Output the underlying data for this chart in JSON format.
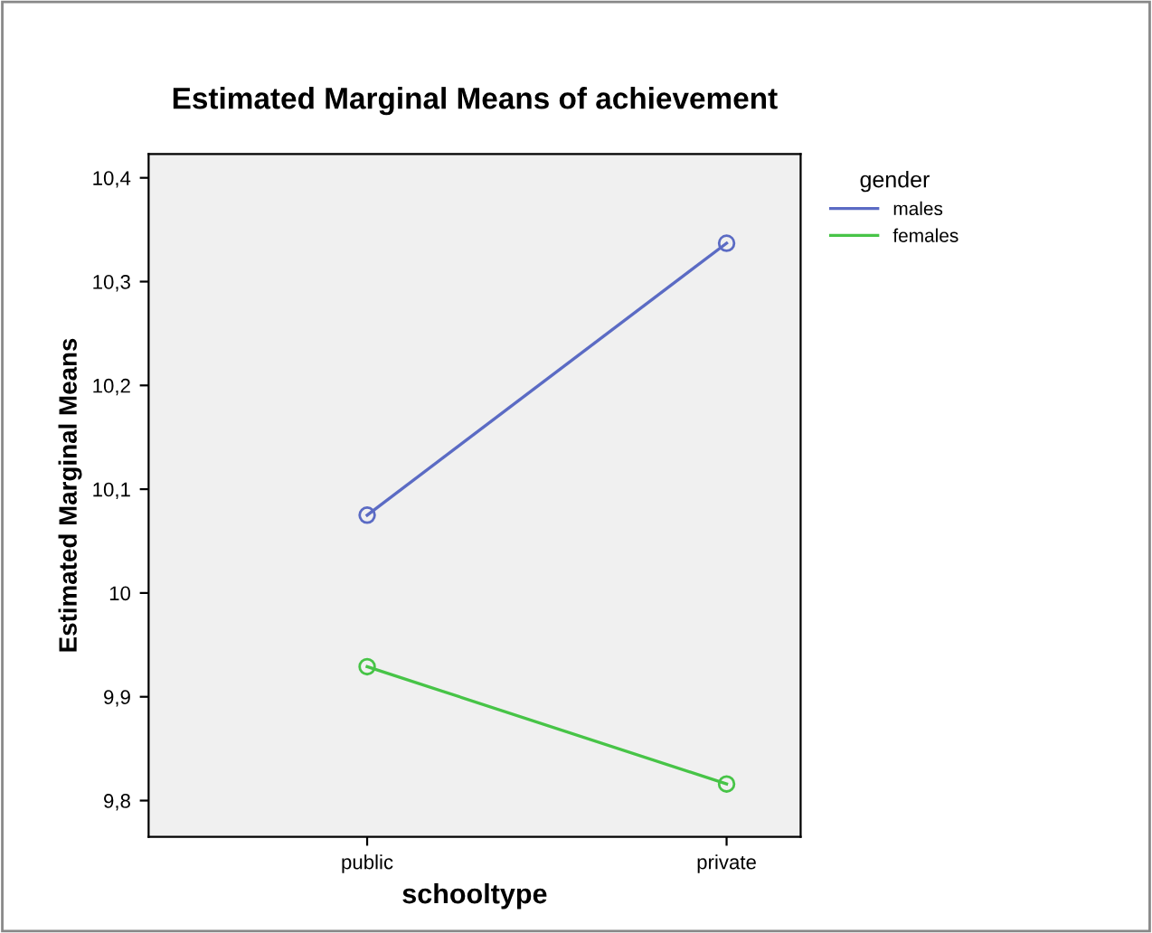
{
  "chart_data": {
    "type": "line",
    "title": "Estimated Marginal Means of achievement",
    "xlabel": "schooltype",
    "ylabel": "Estimated Marginal Means",
    "legend_title": "gender",
    "categories": [
      "public",
      "private"
    ],
    "series": [
      {
        "name": "males",
        "color": "#5b6bc4",
        "values": [
          10.075,
          10.337
        ]
      },
      {
        "name": "females",
        "color": "#47c447",
        "values": [
          9.929,
          9.816
        ]
      }
    ],
    "ylim": [
      9.765,
      10.423
    ],
    "yticks": [
      {
        "value": 9.8,
        "label": "9,8"
      },
      {
        "value": 9.9,
        "label": "9,9"
      },
      {
        "value": 10,
        "label": "10"
      },
      {
        "value": 10.1,
        "label": "10,1"
      },
      {
        "value": 10.2,
        "label": "10,2"
      },
      {
        "value": 10.3,
        "label": "10,3"
      },
      {
        "value": 10.4,
        "label": "10,4"
      }
    ],
    "marker": "circle",
    "legend": "top right",
    "grid": false
  }
}
